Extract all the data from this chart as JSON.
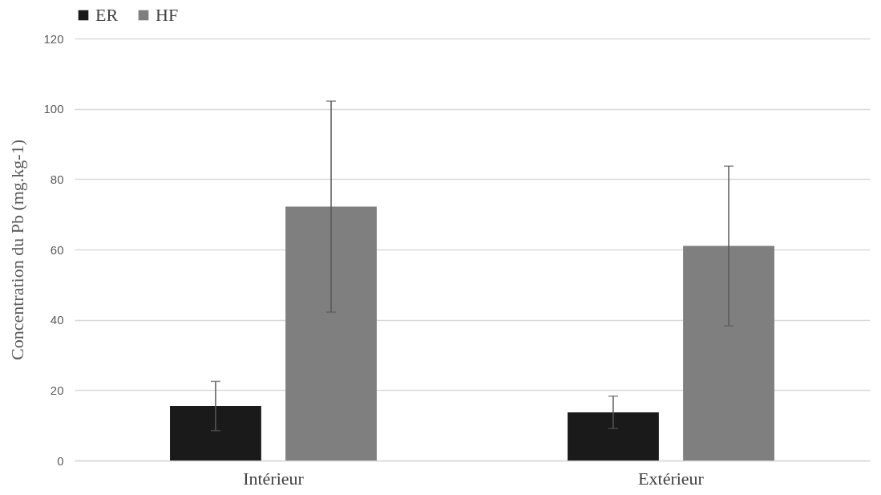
{
  "chart_data": {
    "type": "bar",
    "ylabel": "Concentration du Pb (mg.kg-1)",
    "categories": [
      "Intérieur",
      "Extérieur"
    ],
    "series": [
      {
        "name": "ER",
        "color": "#1a1a1a",
        "values": [
          15.5,
          13.7
        ],
        "errors": [
          7,
          4.6
        ]
      },
      {
        "name": "HF",
        "color": "#7f7f7f",
        "values": [
          72.2,
          61
        ],
        "errors": [
          30,
          22.7
        ]
      }
    ],
    "ylim": [
      0,
      120
    ],
    "yticks": [
      0,
      20,
      40,
      60,
      80,
      100,
      120
    ],
    "grid": "y",
    "legend": "top"
  }
}
